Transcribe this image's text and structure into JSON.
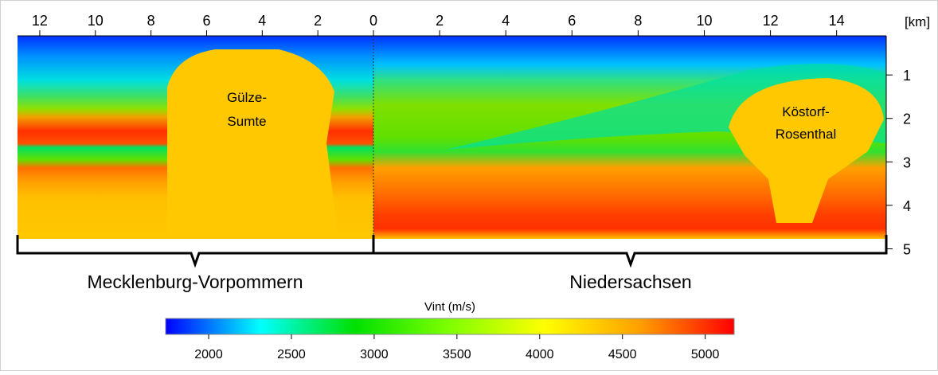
{
  "chart_data": {
    "type": "section",
    "xlim": [
      12.8,
      0
    ],
    "xticks": [
      12,
      10,
      8,
      6,
      4,
      2,
      0
    ],
    "x2lim": [
      0,
      15.5
    ],
    "x2ticks": [
      2,
      4,
      6,
      8,
      10,
      12,
      14
    ],
    "x_unit": "[km]",
    "ylim": [
      0.1,
      5.1
    ],
    "yticks": [
      1,
      2,
      3,
      4,
      5
    ],
    "annotations": [
      "Gülze-",
      "Sumte",
      "Köstorf-",
      "Rosenthal"
    ],
    "regions": [
      "Mecklenburg-Vorpommern",
      "Niedersachsen"
    ],
    "colorbar": {
      "label": "Vint (m/s)",
      "lim": [
        1740,
        5175
      ],
      "ticks": [
        2000,
        2500,
        3000,
        3500,
        4000,
        4500,
        5000
      ],
      "colors": [
        "#0000ff",
        "#00ffff",
        "#00e000",
        "#80ff00",
        "#ffff00",
        "#ffa000",
        "#ff0000"
      ]
    }
  }
}
